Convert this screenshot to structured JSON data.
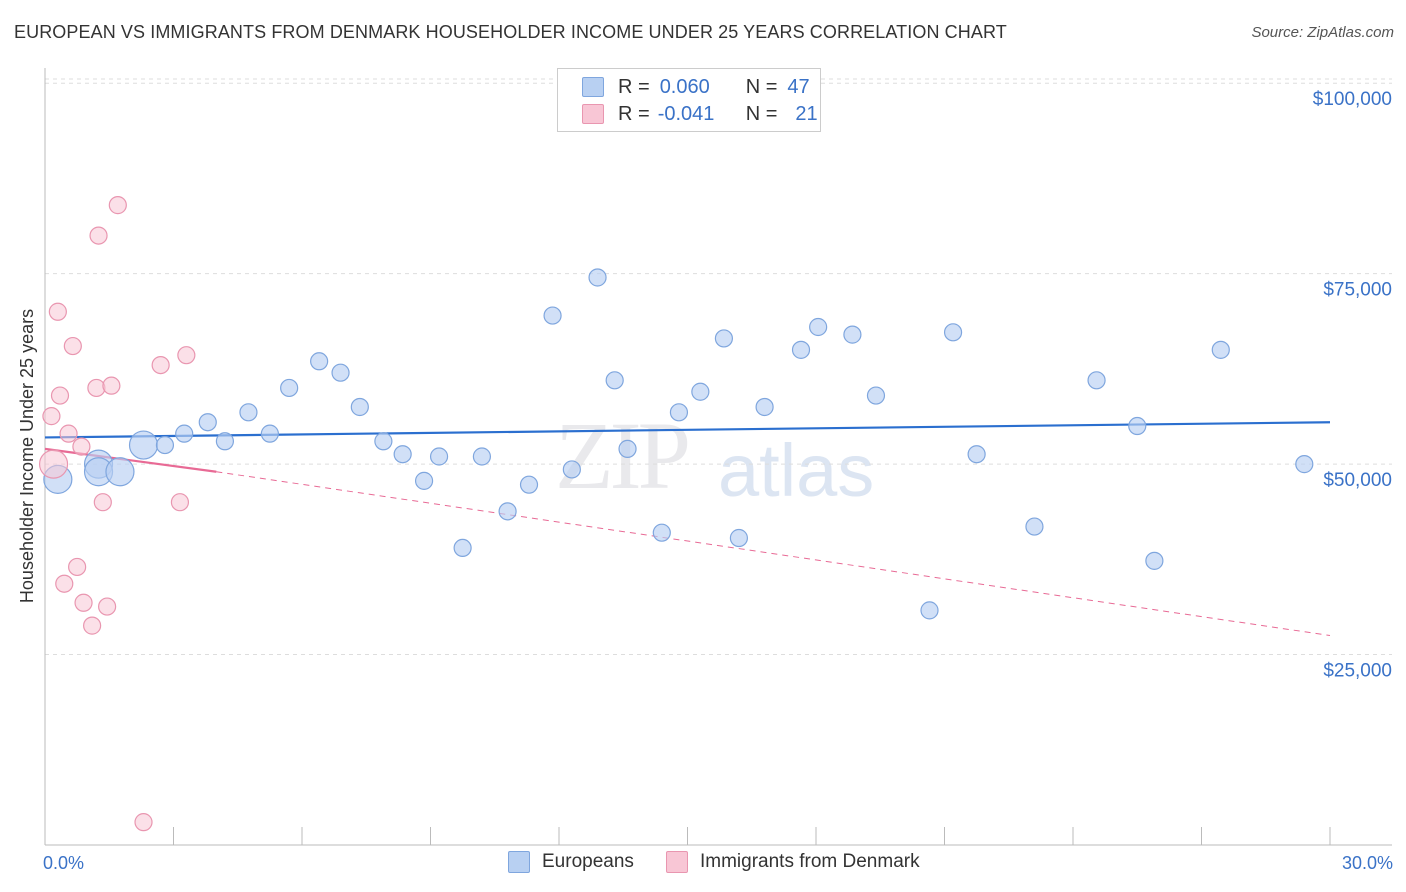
{
  "title": "EUROPEAN VS IMMIGRANTS FROM DENMARK HOUSEHOLDER INCOME UNDER 25 YEARS CORRELATION CHART",
  "source": "Source: ZipAtlas.com",
  "watermark": {
    "zip": "ZIP",
    "atlas": "atlas"
  },
  "legend": {
    "rows": [
      {
        "r_label": "R =",
        "r_value": "0.060",
        "n_label": "N =",
        "n_value": "47"
      },
      {
        "r_label": "R =",
        "r_value": "-0.041",
        "n_label": "N =",
        "n_value": "21"
      }
    ]
  },
  "bottom_legend": {
    "europeans": "Europeans",
    "denmark": "Immigrants from Denmark"
  },
  "colors": {
    "blue_fill": "#b8d0f2",
    "blue_stroke": "#7fa6de",
    "blue_line": "#2b6fcf",
    "pink_fill": "#f8c6d5",
    "pink_stroke": "#e996b0",
    "pink_line": "#e86a95",
    "grid": "#dddddd",
    "tick_text": "#3a72c7"
  },
  "chart_data": {
    "type": "scatter",
    "title": "EUROPEAN VS IMMIGRANTS FROM DENMARK HOUSEHOLDER INCOME UNDER 25 YEARS CORRELATION CHART",
    "xlabel": "",
    "ylabel": "Householder Income Under 25 years",
    "xlim": [
      0,
      30
    ],
    "ylim": [
      0,
      102000
    ],
    "x_tick_labels": [
      "0.0%",
      "30.0%"
    ],
    "y_ticks": [
      {
        "value": 25000,
        "label": "$25,000"
      },
      {
        "value": 50000,
        "label": "$50,000"
      },
      {
        "value": 75000,
        "label": "$75,000"
      },
      {
        "value": 100000,
        "label": "$100,000"
      }
    ],
    "series": [
      {
        "name": "Europeans",
        "trend": {
          "x0": 0,
          "y0": 53500,
          "x1": 30,
          "y1": 55500
        },
        "points": [
          {
            "x": 0.3,
            "y": 48000,
            "s": "l"
          },
          {
            "x": 1.25,
            "y": 50000,
            "s": "l"
          },
          {
            "x": 1.25,
            "y": 49000,
            "s": "l"
          },
          {
            "x": 1.75,
            "y": 49000,
            "s": "l"
          },
          {
            "x": 2.3,
            "y": 52500,
            "s": "l"
          },
          {
            "x": 2.8,
            "y": 52500,
            "s": "m"
          },
          {
            "x": 3.25,
            "y": 54000,
            "s": "m"
          },
          {
            "x": 3.8,
            "y": 55500,
            "s": "m"
          },
          {
            "x": 4.2,
            "y": 53000,
            "s": "m"
          },
          {
            "x": 4.75,
            "y": 56800,
            "s": "m"
          },
          {
            "x": 5.25,
            "y": 54000,
            "s": "m"
          },
          {
            "x": 5.7,
            "y": 60000,
            "s": "m"
          },
          {
            "x": 6.4,
            "y": 63500,
            "s": "m"
          },
          {
            "x": 6.9,
            "y": 62000,
            "s": "m"
          },
          {
            "x": 7.35,
            "y": 57500,
            "s": "m"
          },
          {
            "x": 7.9,
            "y": 53000,
            "s": "m"
          },
          {
            "x": 8.35,
            "y": 51300,
            "s": "m"
          },
          {
            "x": 8.85,
            "y": 47800,
            "s": "m"
          },
          {
            "x": 9.2,
            "y": 51000,
            "s": "m"
          },
          {
            "x": 9.75,
            "y": 39000,
            "s": "m"
          },
          {
            "x": 10.2,
            "y": 51000,
            "s": "m"
          },
          {
            "x": 10.8,
            "y": 43800,
            "s": "m"
          },
          {
            "x": 11.3,
            "y": 47300,
            "s": "m"
          },
          {
            "x": 11.85,
            "y": 69500,
            "s": "m"
          },
          {
            "x": 12.3,
            "y": 49300,
            "s": "m"
          },
          {
            "x": 12.9,
            "y": 74500,
            "s": "m"
          },
          {
            "x": 13.3,
            "y": 61000,
            "s": "m"
          },
          {
            "x": 13.6,
            "y": 52000,
            "s": "m"
          },
          {
            "x": 14.4,
            "y": 41000,
            "s": "m"
          },
          {
            "x": 14.8,
            "y": 56800,
            "s": "m"
          },
          {
            "x": 15.3,
            "y": 59500,
            "s": "m"
          },
          {
            "x": 15.85,
            "y": 66500,
            "s": "m"
          },
          {
            "x": 16.2,
            "y": 40300,
            "s": "m"
          },
          {
            "x": 16.8,
            "y": 57500,
            "s": "m"
          },
          {
            "x": 17.65,
            "y": 65000,
            "s": "m"
          },
          {
            "x": 18.05,
            "y": 68000,
            "s": "m"
          },
          {
            "x": 18.85,
            "y": 67000,
            "s": "m"
          },
          {
            "x": 19.4,
            "y": 59000,
            "s": "m"
          },
          {
            "x": 20.65,
            "y": 30800,
            "s": "m"
          },
          {
            "x": 21.2,
            "y": 67300,
            "s": "m"
          },
          {
            "x": 21.75,
            "y": 51300,
            "s": "m"
          },
          {
            "x": 23.1,
            "y": 41800,
            "s": "m"
          },
          {
            "x": 24.55,
            "y": 61000,
            "s": "m"
          },
          {
            "x": 25.5,
            "y": 55000,
            "s": "m"
          },
          {
            "x": 25.9,
            "y": 37300,
            "s": "m"
          },
          {
            "x": 27.45,
            "y": 65000,
            "s": "m"
          },
          {
            "x": 29.4,
            "y": 50000,
            "s": "m"
          }
        ]
      },
      {
        "name": "Immigrants from Denmark",
        "trend": {
          "x0": 0,
          "y0": 52000,
          "x1": 4,
          "y1": 49000,
          "dash_x1": 30,
          "dash_y1": 27500
        },
        "points": [
          {
            "x": 0.2,
            "y": 50000,
            "s": "l"
          },
          {
            "x": 0.15,
            "y": 56300,
            "s": "m"
          },
          {
            "x": 0.3,
            "y": 70000,
            "s": "m"
          },
          {
            "x": 0.35,
            "y": 59000,
            "s": "m"
          },
          {
            "x": 0.45,
            "y": 34300,
            "s": "m"
          },
          {
            "x": 0.55,
            "y": 54000,
            "s": "m"
          },
          {
            "x": 0.65,
            "y": 65500,
            "s": "m"
          },
          {
            "x": 0.75,
            "y": 36500,
            "s": "m"
          },
          {
            "x": 0.85,
            "y": 52300,
            "s": "m"
          },
          {
            "x": 0.9,
            "y": 31800,
            "s": "m"
          },
          {
            "x": 1.1,
            "y": 28800,
            "s": "m"
          },
          {
            "x": 1.2,
            "y": 60000,
            "s": "m"
          },
          {
            "x": 1.25,
            "y": 80000,
            "s": "m"
          },
          {
            "x": 1.35,
            "y": 45000,
            "s": "m"
          },
          {
            "x": 1.45,
            "y": 31300,
            "s": "m"
          },
          {
            "x": 1.55,
            "y": 60300,
            "s": "m"
          },
          {
            "x": 1.7,
            "y": 84000,
            "s": "m"
          },
          {
            "x": 2.3,
            "y": 3000,
            "s": "m"
          },
          {
            "x": 2.7,
            "y": 63000,
            "s": "m"
          },
          {
            "x": 3.15,
            "y": 45000,
            "s": "m"
          },
          {
            "x": 3.3,
            "y": 64300,
            "s": "m"
          }
        ]
      }
    ]
  }
}
